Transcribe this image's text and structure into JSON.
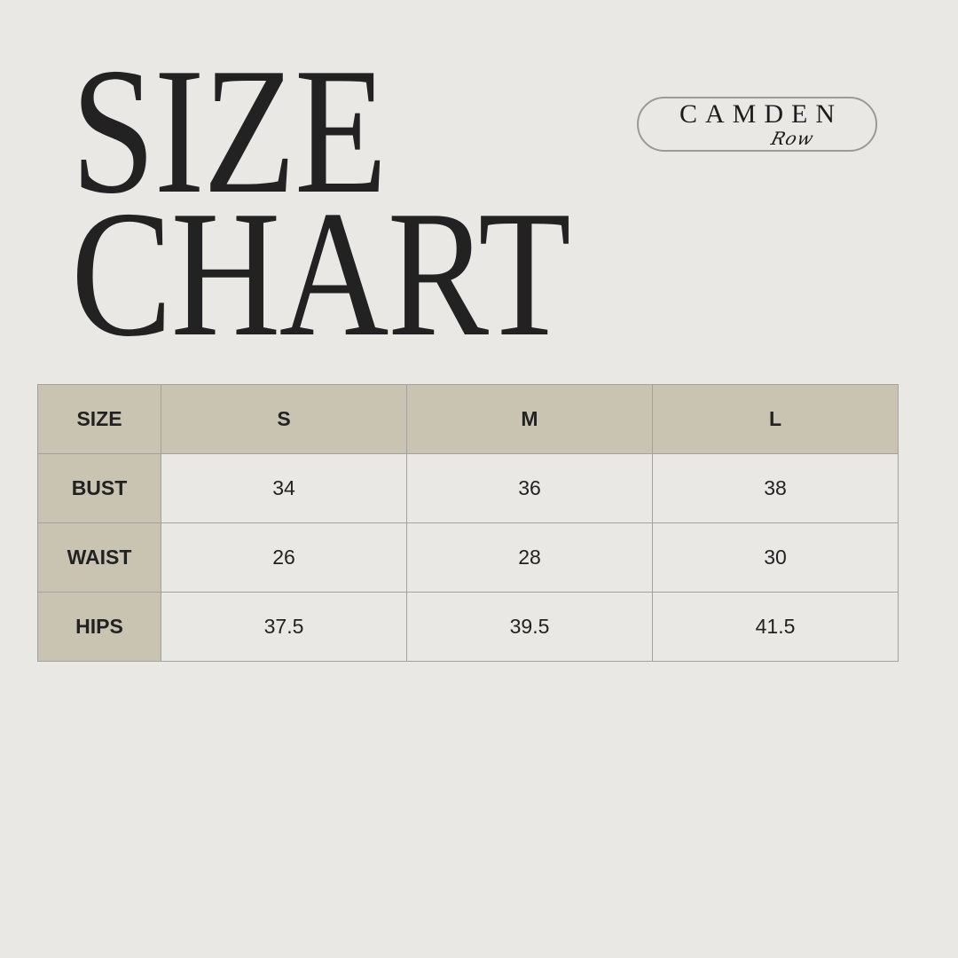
{
  "title": {
    "line1": "SIZE",
    "line2": "CHART"
  },
  "logo": {
    "main": "CAMDEN",
    "script": "Row"
  },
  "colors": {
    "background": "#e9e8e4",
    "header_fill": "#c9c4b2",
    "text": "#222222",
    "border": "#a3a29e"
  },
  "table": {
    "header": [
      "SIZE",
      "S",
      "M",
      "L"
    ],
    "rows": [
      {
        "label": "BUST",
        "values": [
          "34",
          "36",
          "38"
        ]
      },
      {
        "label": "WAIST",
        "values": [
          "26",
          "28",
          "30"
        ]
      },
      {
        "label": "HIPS",
        "values": [
          "37.5",
          "39.5",
          "41.5"
        ]
      }
    ]
  }
}
